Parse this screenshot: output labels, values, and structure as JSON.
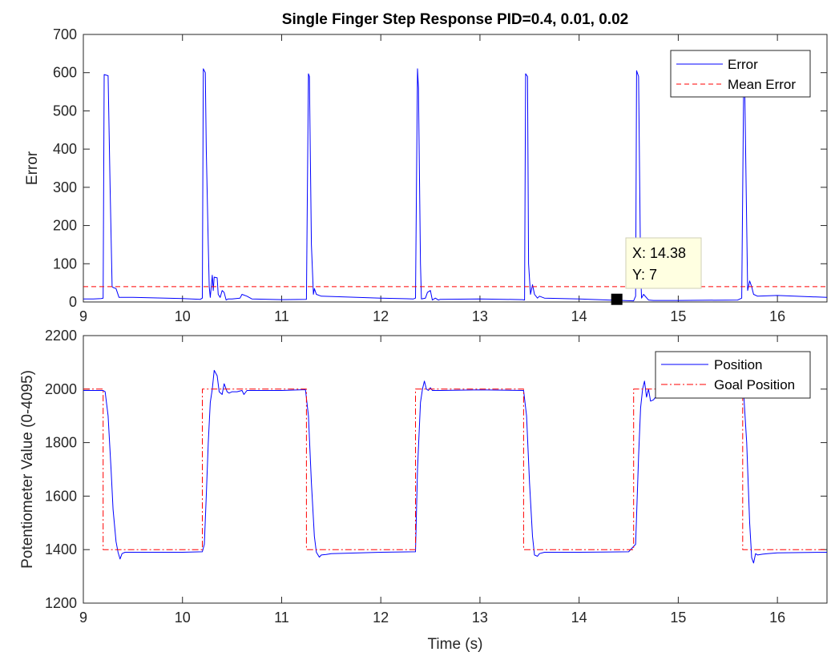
{
  "figure": {
    "title": "Single Finger Step Response PID=0.4, 0.01, 0.02"
  },
  "chart_data": [
    {
      "type": "line",
      "xlabel": "",
      "ylabel": "Error",
      "xlim": [
        9,
        16.5
      ],
      "ylim": [
        0,
        700
      ],
      "xticks": [
        "9",
        "10",
        "11",
        "12",
        "13",
        "14",
        "15",
        "16"
      ],
      "yticks": [
        "0",
        "100",
        "200",
        "300",
        "400",
        "500",
        "600",
        "700"
      ],
      "grid": false,
      "legend": "top-right",
      "colors": {
        "error": "#0000ff",
        "mean": "#ff0000"
      },
      "series": [
        {
          "name": "Error",
          "style": "solid",
          "x": [
            9.0,
            9.1,
            9.18,
            9.2,
            9.21,
            9.25,
            9.27,
            9.29,
            9.3,
            9.33,
            9.36,
            9.5,
            10.0,
            10.18,
            10.2,
            10.21,
            10.23,
            10.24,
            10.26,
            10.27,
            10.28,
            10.3,
            10.31,
            10.32,
            10.35,
            10.36,
            10.38,
            10.4,
            10.42,
            10.44,
            10.46,
            10.5,
            10.58,
            10.6,
            10.65,
            10.7,
            11.0,
            11.25,
            11.27,
            11.28,
            11.3,
            11.32,
            11.33,
            11.35,
            11.4,
            12.0,
            12.33,
            12.35,
            12.37,
            12.38,
            12.4,
            12.41,
            12.45,
            12.47,
            12.5,
            12.52,
            12.55,
            12.58,
            12.6,
            13.0,
            13.43,
            13.45,
            13.46,
            13.48,
            13.49,
            13.51,
            13.53,
            13.55,
            13.58,
            13.6,
            13.65,
            14.0,
            14.3,
            14.55,
            14.57,
            14.58,
            14.6,
            14.62,
            14.63,
            14.65,
            14.7,
            14.75,
            15.0,
            15.6,
            15.64,
            15.66,
            15.67,
            15.69,
            15.7,
            15.72,
            15.74,
            15.76,
            15.8,
            16.0,
            16.5
          ],
          "y": [
            8,
            8,
            9,
            10,
            595,
            592,
            300,
            40,
            38,
            35,
            12,
            12,
            9,
            7,
            10,
            610,
            600,
            400,
            150,
            40,
            12,
            70,
            30,
            65,
            63,
            20,
            12,
            30,
            25,
            5,
            8,
            8,
            10,
            20,
            15,
            8,
            6,
            7,
            597,
            590,
            150,
            20,
            35,
            20,
            15,
            10,
            8,
            10,
            610,
            560,
            100,
            8,
            10,
            25,
            30,
            5,
            10,
            5,
            7,
            8,
            6,
            5,
            597,
            590,
            100,
            20,
            45,
            20,
            10,
            15,
            10,
            8,
            5,
            3,
            15,
            605,
            590,
            80,
            10,
            20,
            5,
            4,
            4,
            5,
            10,
            590,
            570,
            200,
            30,
            55,
            40,
            20,
            15,
            17,
            12
          ]
        },
        {
          "name": "Mean Error",
          "style": "dashed",
          "x": [
            9,
            16.5
          ],
          "y": [
            40,
            40
          ]
        }
      ],
      "annotations": [
        {
          "x": 14.38,
          "y": 7,
          "label_x": "X: 14.38",
          "label_y": "Y: 7"
        }
      ]
    },
    {
      "type": "line",
      "xlabel": "Time (s)",
      "ylabel": "Potentiometer Value (0-4095)",
      "xlim": [
        9,
        16.5
      ],
      "ylim": [
        1200,
        2200
      ],
      "xticks": [
        "9",
        "10",
        "11",
        "12",
        "13",
        "14",
        "15",
        "16"
      ],
      "yticks": [
        "1200",
        "1400",
        "1600",
        "1800",
        "2000",
        "2200"
      ],
      "grid": false,
      "legend": "top-right",
      "colors": {
        "position": "#0000ff",
        "goal": "#ff0000"
      },
      "series": [
        {
          "name": "Position",
          "style": "solid",
          "x": [
            9.0,
            9.2,
            9.22,
            9.25,
            9.28,
            9.3,
            9.33,
            9.35,
            9.37,
            9.39,
            9.42,
            9.45,
            9.5,
            10.0,
            10.2,
            10.22,
            10.24,
            10.26,
            10.28,
            10.3,
            10.32,
            10.35,
            10.37,
            10.4,
            10.42,
            10.45,
            10.47,
            10.5,
            10.55,
            10.6,
            10.62,
            10.65,
            10.7,
            11.0,
            11.24,
            11.27,
            11.3,
            11.33,
            11.35,
            11.38,
            11.4,
            11.45,
            11.5,
            12.0,
            12.35,
            12.37,
            12.4,
            12.42,
            12.44,
            12.46,
            12.48,
            12.5,
            12.52,
            12.55,
            12.6,
            13.0,
            13.44,
            13.47,
            13.5,
            13.53,
            13.55,
            13.58,
            13.6,
            13.65,
            13.7,
            14.0,
            14.5,
            14.57,
            14.6,
            14.62,
            14.64,
            14.66,
            14.68,
            14.7,
            14.72,
            14.75,
            14.8,
            15.0,
            15.5,
            15.6,
            15.66,
            15.69,
            15.72,
            15.74,
            15.76,
            15.78,
            15.8,
            15.85,
            15.9,
            16.0,
            16.5
          ],
          "y": [
            1995,
            1995,
            1990,
            1900,
            1700,
            1550,
            1430,
            1390,
            1365,
            1385,
            1390,
            1390,
            1390,
            1390,
            1392,
            1420,
            1600,
            1800,
            1950,
            2000,
            2070,
            2050,
            1990,
            1980,
            2020,
            1990,
            1985,
            1990,
            1990,
            1995,
            1980,
            1995,
            1995,
            1995,
            1998,
            1900,
            1650,
            1450,
            1390,
            1372,
            1380,
            1382,
            1385,
            1390,
            1392,
            1700,
            1950,
            2000,
            2030,
            2000,
            1995,
            2005,
            1995,
            1995,
            1995,
            1997,
            1995,
            1900,
            1650,
            1450,
            1380,
            1375,
            1385,
            1390,
            1390,
            1390,
            1392,
            1420,
            1750,
            1930,
            2000,
            2030,
            1970,
            2000,
            1955,
            1960,
            1985,
            1980,
            1980,
            1990,
            1980,
            1800,
            1500,
            1370,
            1350,
            1385,
            1380,
            1383,
            1385,
            1388,
            1390
          ]
        },
        {
          "name": "Goal Position",
          "style": "dashdot",
          "x": [
            9.0,
            9.2,
            9.2,
            10.2,
            10.2,
            11.25,
            11.25,
            12.35,
            12.35,
            13.44,
            13.44,
            14.55,
            14.55,
            15.65,
            15.65,
            16.5
          ],
          "y": [
            2000,
            2000,
            1400,
            1400,
            2000,
            2000,
            1400,
            1400,
            2000,
            2000,
            1400,
            1400,
            2000,
            2000,
            1400,
            1400
          ]
        }
      ]
    }
  ]
}
